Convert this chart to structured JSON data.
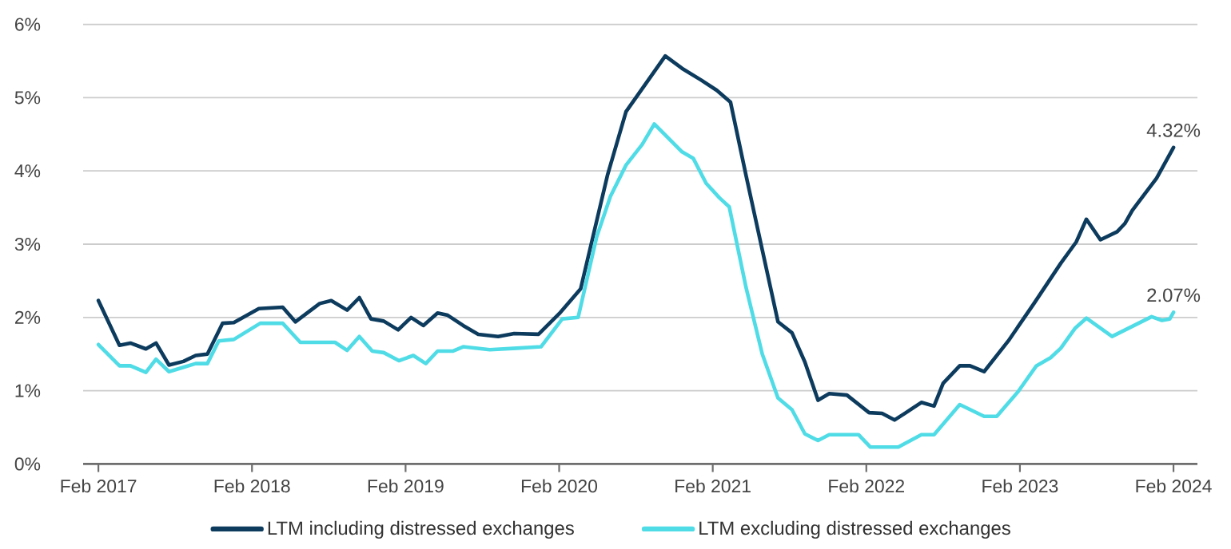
{
  "chart_data": {
    "type": "line",
    "xlim": [
      "2016-12-26",
      "2024-03-28"
    ],
    "ylim": [
      0,
      6
    ],
    "xticks": [
      {
        "value": "2017-02",
        "label": "Feb 2017"
      },
      {
        "value": "2018-02",
        "label": "Feb 2018"
      },
      {
        "value": "2019-02",
        "label": "Feb 2019"
      },
      {
        "value": "2020-02",
        "label": "Feb 2020"
      },
      {
        "value": "2021-02",
        "label": "Feb 2021"
      },
      {
        "value": "2022-02",
        "label": "Feb 2022"
      },
      {
        "value": "2023-02",
        "label": "Feb 2023"
      },
      {
        "value": "2024-02",
        "label": "Feb 2024"
      }
    ],
    "yticks": [
      {
        "value": 0,
        "label": "0%"
      },
      {
        "value": 1,
        "label": "1%"
      },
      {
        "value": 2,
        "label": "2%"
      },
      {
        "value": 3,
        "label": "3%"
      },
      {
        "value": 4,
        "label": "4%"
      },
      {
        "value": 5,
        "label": "5%"
      },
      {
        "value": 6,
        "label": "6%"
      }
    ],
    "grid": "y",
    "legend": "bottom",
    "series": [
      {
        "name": "LTM including distressed exchanges",
        "color": "#0c3b5e",
        "x": [
          "2017-02-01",
          "2017-03-21",
          "2017-04-16",
          "2017-05-23",
          "2017-06-16",
          "2017-07-17",
          "2017-08-21",
          "2017-09-19",
          "2017-10-17",
          "2017-11-22",
          "2017-12-19",
          "2018-02-16",
          "2018-04-13",
          "2018-05-13",
          "2018-07-10",
          "2018-08-07",
          "2018-09-14",
          "2018-10-13",
          "2018-11-10",
          "2018-12-10",
          "2019-01-14",
          "2019-02-13",
          "2019-03-13",
          "2019-04-16",
          "2019-05-10",
          "2019-06-16",
          "2019-07-22",
          "2019-09-08",
          "2019-10-16",
          "2019-12-13",
          "2020-02-01",
          "2020-03-22",
          "2020-05-25",
          "2020-07-08",
          "2020-08-22",
          "2020-10-10",
          "2020-11-19",
          "2021-01-04",
          "2021-02-10",
          "2021-03-13",
          "2021-04-19",
          "2021-05-28",
          "2021-07-04",
          "2021-08-07",
          "2021-09-07",
          "2021-10-08",
          "2021-11-04",
          "2021-12-16",
          "2022-02-07",
          "2022-03-08",
          "2022-04-07",
          "2022-05-04",
          "2022-06-10",
          "2022-07-10",
          "2022-08-01",
          "2022-09-10",
          "2022-10-04",
          "2022-11-07",
          "2023-01-04",
          "2023-03-04",
          "2023-05-07",
          "2023-06-13",
          "2023-07-07",
          "2023-08-10",
          "2023-09-19",
          "2023-10-07",
          "2023-10-25",
          "2023-12-22",
          "2024-02-01"
        ],
        "values": [
          2.23,
          1.62,
          1.65,
          1.57,
          1.65,
          1.35,
          1.4,
          1.48,
          1.5,
          1.92,
          1.93,
          2.12,
          2.14,
          1.94,
          2.19,
          2.23,
          2.1,
          2.27,
          1.98,
          1.95,
          1.83,
          2.0,
          1.89,
          2.06,
          2.03,
          1.89,
          1.77,
          1.74,
          1.78,
          1.77,
          2.05,
          2.39,
          3.94,
          4.81,
          5.17,
          5.57,
          5.4,
          5.24,
          5.1,
          4.94,
          3.94,
          2.92,
          1.94,
          1.79,
          1.39,
          0.87,
          0.96,
          0.94,
          0.7,
          0.69,
          0.6,
          0.7,
          0.84,
          0.79,
          1.1,
          1.34,
          1.34,
          1.26,
          1.68,
          2.19,
          2.74,
          3.03,
          3.34,
          3.06,
          3.17,
          3.28,
          3.46,
          3.9,
          4.32
        ]
      },
      {
        "name": "LTM excluding distressed exchanges",
        "color": "#50dce6",
        "x": [
          "2017-02-01",
          "2017-03-21",
          "2017-04-16",
          "2017-05-23",
          "2017-06-16",
          "2017-07-17",
          "2017-08-21",
          "2017-09-19",
          "2017-10-17",
          "2017-11-13",
          "2017-12-19",
          "2018-02-19",
          "2018-04-13",
          "2018-05-25",
          "2018-08-16",
          "2018-09-14",
          "2018-10-13",
          "2018-11-13",
          "2018-12-10",
          "2019-01-16",
          "2019-02-18",
          "2019-03-19",
          "2019-04-16",
          "2019-05-22",
          "2019-06-16",
          "2019-08-19",
          "2019-10-22",
          "2019-12-19",
          "2020-02-08",
          "2020-03-16",
          "2020-04-29",
          "2020-06-01",
          "2020-07-08",
          "2020-08-16",
          "2020-09-14",
          "2020-11-19",
          "2020-12-16",
          "2021-01-16",
          "2021-02-16",
          "2021-03-10",
          "2021-04-19",
          "2021-05-28",
          "2021-07-04",
          "2021-08-07",
          "2021-09-07",
          "2021-10-08",
          "2021-11-04",
          "2022-01-13",
          "2022-02-10",
          "2022-04-16",
          "2022-06-10",
          "2022-07-10",
          "2022-09-10",
          "2022-11-07",
          "2022-12-07",
          "2023-01-28",
          "2023-03-10",
          "2023-04-13",
          "2023-05-07",
          "2023-06-10",
          "2023-07-07",
          "2023-09-07",
          "2023-12-10",
          "2024-01-04",
          "2024-01-23",
          "2024-02-01"
        ],
        "values": [
          1.63,
          1.34,
          1.34,
          1.25,
          1.43,
          1.26,
          1.32,
          1.37,
          1.37,
          1.68,
          1.7,
          1.92,
          1.92,
          1.66,
          1.66,
          1.55,
          1.74,
          1.54,
          1.52,
          1.41,
          1.48,
          1.37,
          1.54,
          1.54,
          1.6,
          1.56,
          1.58,
          1.6,
          1.98,
          2.0,
          3.1,
          3.65,
          4.08,
          4.36,
          4.64,
          4.26,
          4.17,
          3.83,
          3.63,
          3.51,
          2.41,
          1.5,
          0.9,
          0.74,
          0.41,
          0.32,
          0.4,
          0.4,
          0.23,
          0.23,
          0.4,
          0.4,
          0.81,
          0.65,
          0.65,
          0.99,
          1.34,
          1.45,
          1.58,
          1.85,
          1.99,
          1.74,
          2.01,
          1.96,
          1.98,
          2.07
        ]
      }
    ],
    "annotations": [
      {
        "text": "4.32%",
        "x": "2024-02-01",
        "y": 4.32
      },
      {
        "text": "2.07%",
        "x": "2024-02-01",
        "y": 2.07
      }
    ]
  }
}
